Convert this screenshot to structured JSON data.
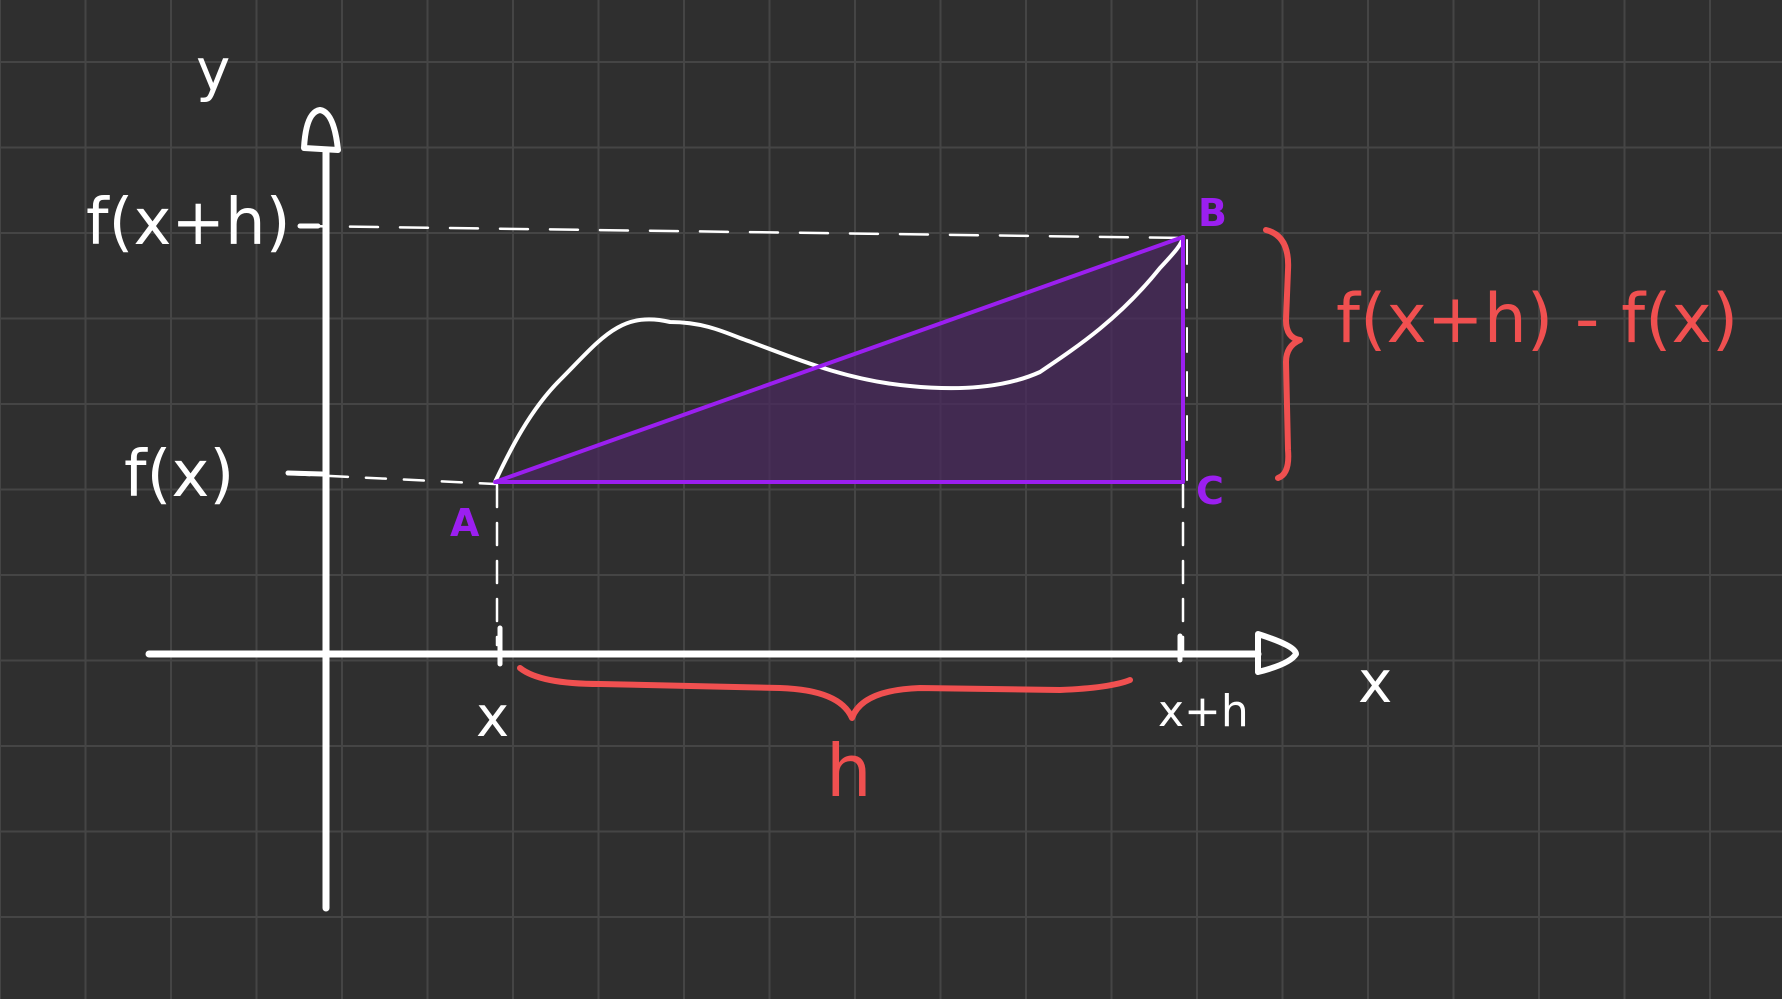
{
  "axes": {
    "x_label": "x",
    "y_label": "y"
  },
  "x_ticks": {
    "start": "x",
    "end": "x+h"
  },
  "y_ticks": {
    "low": "f(x)",
    "high": "f(x+h)"
  },
  "points": {
    "a": "A",
    "b": "B",
    "c": "C"
  },
  "annotations": {
    "rise": "f(x+h) - f(x)",
    "run": "h"
  },
  "colors": {
    "background": "#2f2f2f",
    "grid": "#454545",
    "axes": "#ffffff",
    "triangle_stroke": "#9b1ff0",
    "triangle_fill": "#4a2a5e",
    "annotation": "#f05050"
  }
}
